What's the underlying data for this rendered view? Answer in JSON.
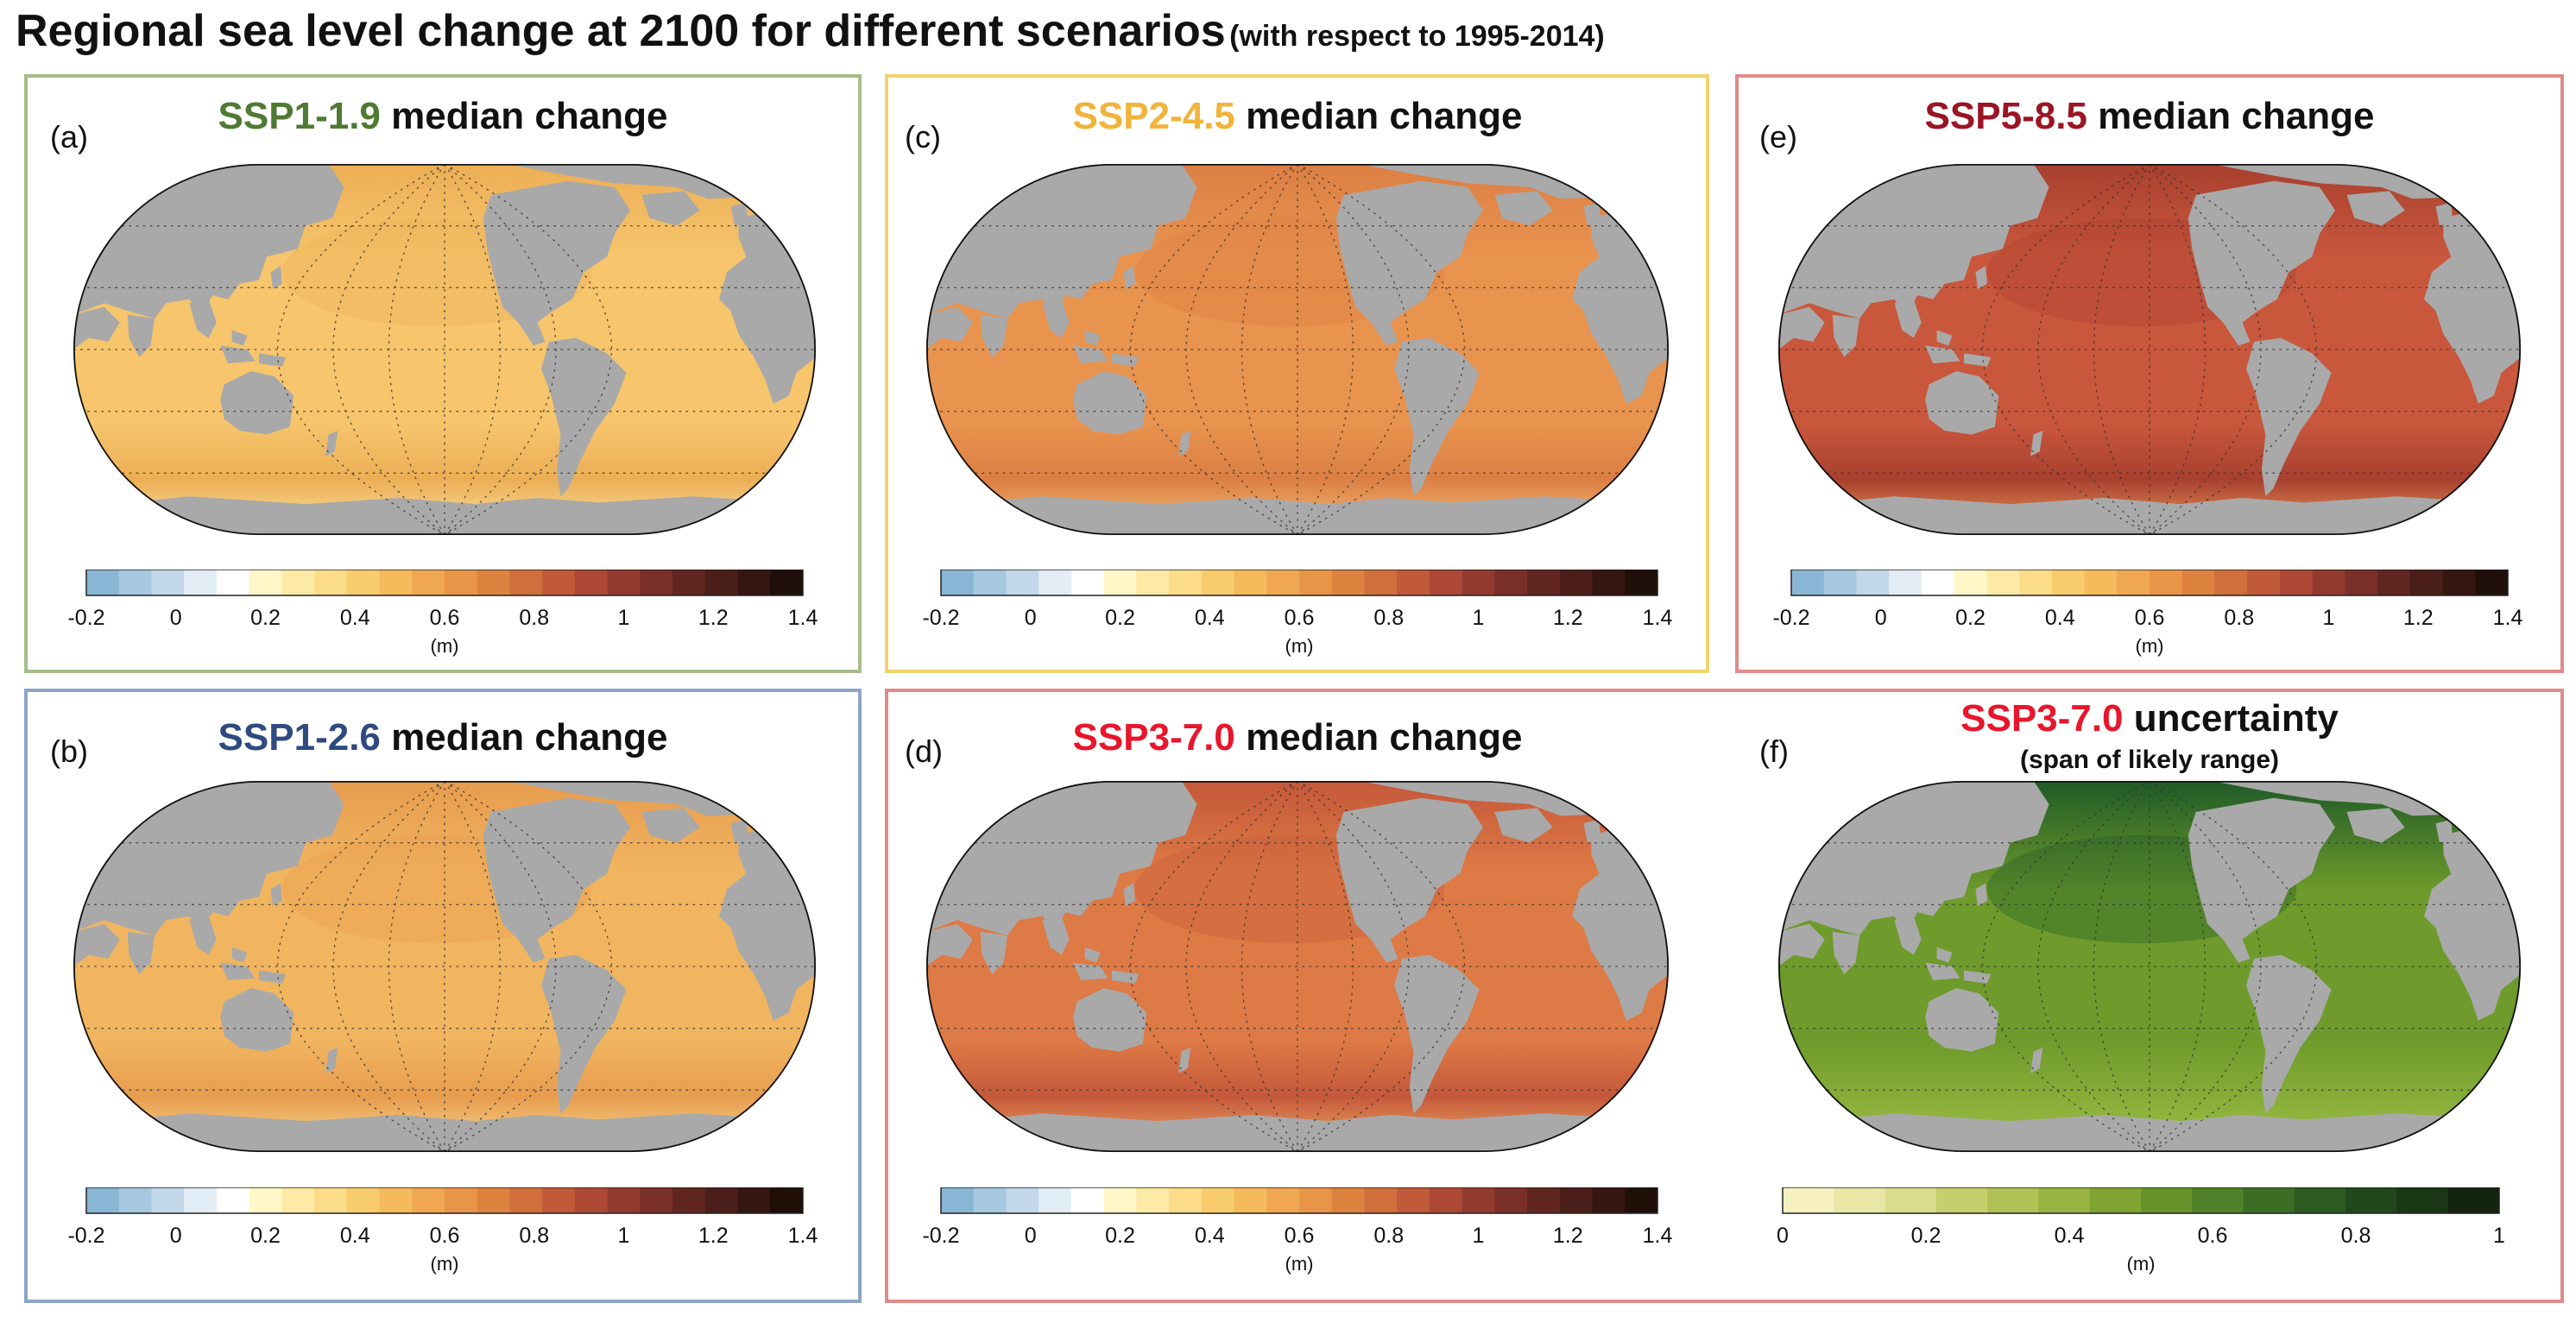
{
  "title": {
    "main": "Regional sea level change at 2100 for different scenarios",
    "sub": "(with respect to 1995-2014)"
  },
  "colors": {
    "ssp119": "#4f7a33",
    "ssp126": "#2e4a80",
    "ssp245": "#f2b33a",
    "ssp370": "#e8162c",
    "ssp585": "#9b1523",
    "land": "#a9a9a9",
    "frame_green": "#a7bd8c",
    "frame_blue": "#8ea5c4",
    "frame_yellow": "#f0d36d",
    "frame_red": "#e28a8a"
  },
  "scale_sea_level": {
    "ticks": [
      "-0.2",
      "0",
      "0.2",
      "0.4",
      "0.6",
      "0.8",
      "1",
      "1.2",
      "1.4"
    ],
    "unit": "(m)",
    "colors": [
      "#8ab6d6",
      "#a6c8e0",
      "#c2d8ea",
      "#e3edf5",
      "#ffffff",
      "#fff7c8",
      "#fdeaa6",
      "#fbdc88",
      "#f8cc6d",
      "#f4ba5c",
      "#efa752",
      "#e89548",
      "#de8240",
      "#d06e3c",
      "#c05a38",
      "#ac4834",
      "#933a2f",
      "#7a2f29",
      "#612620",
      "#4a1e19",
      "#351610",
      "#1f0f08"
    ]
  },
  "scale_uncertainty": {
    "ticks": [
      "0",
      "0.2",
      "0.4",
      "0.6",
      "0.8",
      "1"
    ],
    "unit": "(m)",
    "colors": [
      "#f7f1c0",
      "#e9e7a6",
      "#d9dc8a",
      "#c6cf6d",
      "#b0c255",
      "#98b440",
      "#7fa432",
      "#67932c",
      "#4f8128",
      "#3b6e24",
      "#2b5b20",
      "#20481b",
      "#193615",
      "#14240f"
    ]
  },
  "panels": [
    {
      "id": "a",
      "label": "(a)",
      "scenario": "SSP1-1.9",
      "suffix": "median change",
      "ocean": "#f6c56c",
      "ocean_dark": "#ecae55",
      "polar": "#fbe6a5",
      "scale": "sea_level"
    },
    {
      "id": "b",
      "label": "(b)",
      "scenario": "SSP1-2.6",
      "suffix": "median change",
      "ocean": "#f1b560",
      "ocean_dark": "#e79c4e",
      "polar": "#f9dc95",
      "scale": "sea_level"
    },
    {
      "id": "c",
      "label": "(c)",
      "scenario": "SSP2-4.5",
      "suffix": "median change",
      "ocean": "#e8934e",
      "ocean_dark": "#dc7f45",
      "polar": "#f4c27a",
      "scale": "sea_level"
    },
    {
      "id": "d",
      "label": "(d)",
      "scenario": "SSP3-7.0",
      "suffix": "median change",
      "ocean": "#de7a45",
      "ocean_dark": "#c5583a",
      "polar": "#f0b06a",
      "scale": "sea_level"
    },
    {
      "id": "e",
      "label": "(e)",
      "scenario": "SSP5-8.5",
      "suffix": "median change",
      "ocean": "#c9573c",
      "ocean_dark": "#a8402f",
      "polar": "#ee9f5c",
      "scale": "sea_level"
    },
    {
      "id": "f",
      "label": "(f)",
      "scenario": "SSP3-7.0",
      "suffix": "uncertainty",
      "subtitle": "(span of likely range)",
      "ocean": "#6e9b2b",
      "ocean_dark": "#1f5a27",
      "polar": "#9fbe45",
      "scale": "uncertainty"
    }
  ]
}
